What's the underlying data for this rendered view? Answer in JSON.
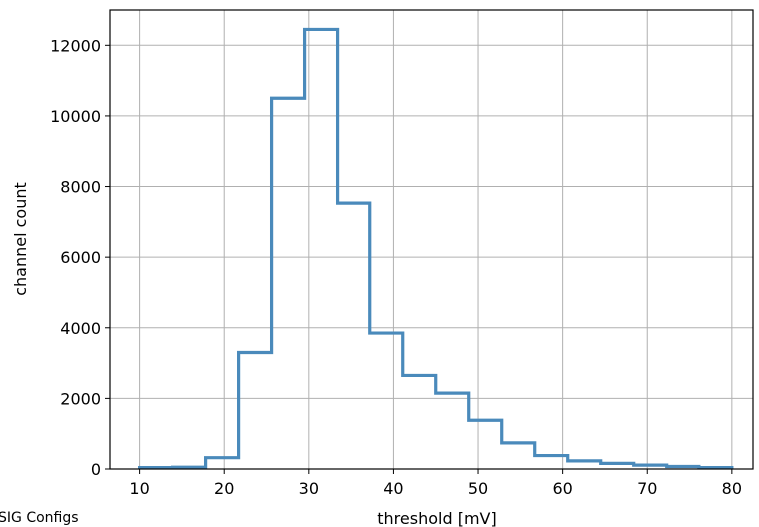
{
  "corner_note": "SIG Configs",
  "chart_data": {
    "type": "histogram",
    "xlabel": "threshold [mV]",
    "ylabel": "channel count",
    "xlim": [
      6.5,
      82.5
    ],
    "ylim": [
      0,
      13000
    ],
    "grid": true,
    "line_color": "#4a8abb",
    "x_ticks": [
      10,
      20,
      30,
      40,
      50,
      60,
      70,
      80
    ],
    "y_ticks": [
      0,
      2000,
      4000,
      6000,
      8000,
      10000,
      12000
    ],
    "bin_edges": [
      10,
      13.9,
      17.8,
      21.7,
      25.6,
      29.5,
      33.4,
      37.2,
      41.1,
      45.0,
      48.9,
      52.8,
      56.7,
      60.6,
      64.5,
      68.4,
      72.3,
      76.1,
      80
    ],
    "counts": [
      40,
      50,
      320,
      3300,
      10500,
      12450,
      7530,
      3850,
      2650,
      2150,
      1380,
      740,
      380,
      230,
      160,
      110,
      70,
      40
    ]
  }
}
